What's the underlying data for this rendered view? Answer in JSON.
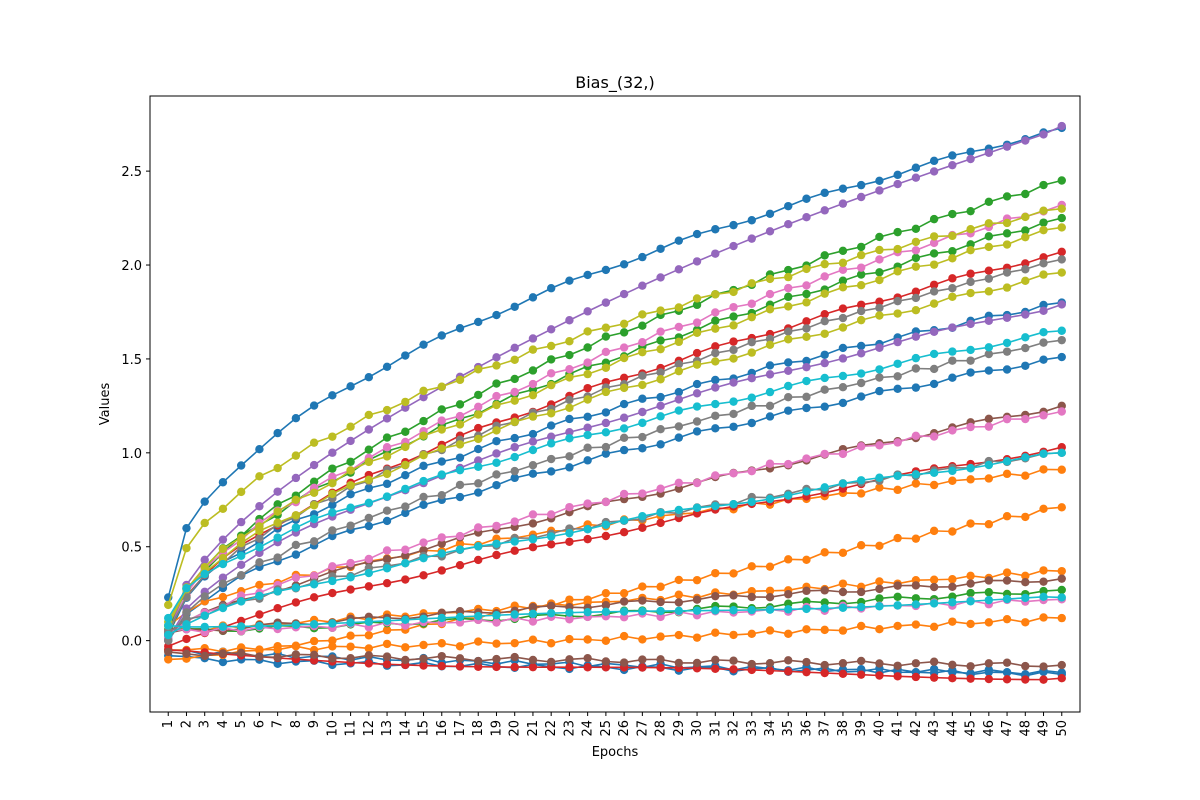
{
  "chart_data": {
    "type": "line",
    "title": "Bias_(32,)",
    "xlabel": "Epochs",
    "ylabel": "Values",
    "xlim": [
      0,
      51
    ],
    "ylim": [
      -0.38,
      2.9
    ],
    "yticks": [
      0.0,
      0.5,
      1.0,
      1.5,
      2.0,
      2.5
    ],
    "ytick_labels": [
      "0.0",
      "0.5",
      "1.0",
      "1.5",
      "2.0",
      "2.5"
    ],
    "categories": [
      "1",
      "2",
      "3",
      "4",
      "5",
      "6",
      "7",
      "8",
      "9",
      "10",
      "11",
      "12",
      "13",
      "14",
      "15",
      "16",
      "17",
      "18",
      "19",
      "20",
      "21",
      "22",
      "23",
      "24",
      "25",
      "26",
      "27",
      "28",
      "29",
      "30",
      "31",
      "32",
      "33",
      "34",
      "35",
      "36",
      "37",
      "38",
      "39",
      "40",
      "41",
      "42",
      "43",
      "44",
      "45",
      "46",
      "47",
      "48",
      "49",
      "50"
    ],
    "grid": false,
    "markers": "circle",
    "series": [
      {
        "color": "#1f77b4",
        "start": 0.23,
        "end": 2.73,
        "p": 0.5
      },
      {
        "color": "#1f77b4",
        "start": 0.0,
        "end": 1.51,
        "p": 0.6
      },
      {
        "color": "#1f77b4",
        "start": 0.03,
        "end": 1.8,
        "p": 0.55
      },
      {
        "color": "#1f77b4",
        "start": -0.08,
        "end": -0.17,
        "p": 0.5
      },
      {
        "color": "#1f77b4",
        "start": -0.05,
        "end": -0.18,
        "p": 0.7
      },
      {
        "color": "#ff7f0e",
        "start": 0.08,
        "end": 0.91,
        "p": 0.6
      },
      {
        "color": "#ff7f0e",
        "start": -0.1,
        "end": 0.71,
        "p": 1.2
      },
      {
        "color": "#ff7f0e",
        "start": 0.05,
        "end": 0.37,
        "p": 1.0
      },
      {
        "color": "#ff7f0e",
        "start": -0.05,
        "end": 0.12,
        "p": 1.5
      },
      {
        "color": "#2ca02c",
        "start": 0.03,
        "end": 2.45,
        "p": 0.6
      },
      {
        "color": "#2ca02c",
        "start": 0.06,
        "end": 2.25,
        "p": 0.6
      },
      {
        "color": "#2ca02c",
        "start": 0.05,
        "end": 0.27,
        "p": 1.2
      },
      {
        "color": "#d62728",
        "start": 0.05,
        "end": 2.07,
        "p": 0.6
      },
      {
        "color": "#d62728",
        "start": -0.03,
        "end": 1.03,
        "p": 0.8
      },
      {
        "color": "#d62728",
        "start": -0.05,
        "end": -0.2,
        "p": 0.6
      },
      {
        "color": "#9467bd",
        "start": 0.03,
        "end": 2.74,
        "p": 0.6
      },
      {
        "color": "#9467bd",
        "start": 0.01,
        "end": 1.79,
        "p": 0.6
      },
      {
        "color": "#8c564b",
        "start": 0.05,
        "end": 1.25,
        "p": 0.8
      },
      {
        "color": "#8c564b",
        "start": 0.04,
        "end": 0.33,
        "p": 0.9
      },
      {
        "color": "#8c564b",
        "start": -0.06,
        "end": -0.13,
        "p": 0.6
      },
      {
        "color": "#e377c2",
        "start": 0.04,
        "end": 2.32,
        "p": 0.6
      },
      {
        "color": "#e377c2",
        "start": 0.02,
        "end": 1.22,
        "p": 0.7
      },
      {
        "color": "#e377c2",
        "start": 0.05,
        "end": 0.22,
        "p": 1.1
      },
      {
        "color": "#7f7f7f",
        "start": 0.05,
        "end": 2.03,
        "p": 0.6
      },
      {
        "color": "#7f7f7f",
        "start": 0.0,
        "end": 1.6,
        "p": 0.6
      },
      {
        "color": "#7f7f7f",
        "start": 0.04,
        "end": 1.0,
        "p": 0.7
      },
      {
        "color": "#bcbd22",
        "start": 0.19,
        "end": 2.3,
        "p": 0.5
      },
      {
        "color": "#bcbd22",
        "start": 0.08,
        "end": 2.2,
        "p": 0.6
      },
      {
        "color": "#bcbd22",
        "start": 0.1,
        "end": 1.96,
        "p": 0.6
      },
      {
        "color": "#17becf",
        "start": 0.12,
        "end": 1.65,
        "p": 0.6
      },
      {
        "color": "#17becf",
        "start": 0.03,
        "end": 1.0,
        "p": 0.7
      },
      {
        "color": "#17becf",
        "start": 0.08,
        "end": 0.23,
        "p": 1.2
      }
    ]
  }
}
